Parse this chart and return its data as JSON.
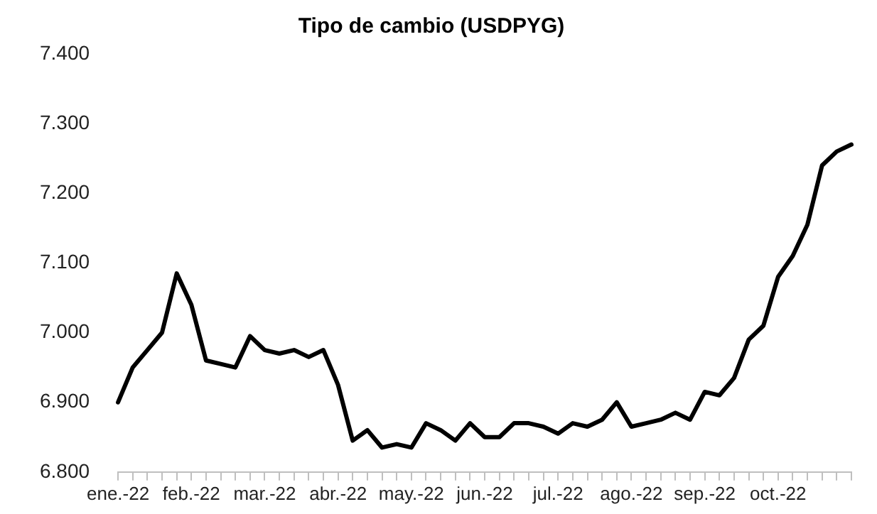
{
  "chart_data": {
    "type": "line",
    "title": "Tipo de cambio (USDPYG)",
    "categories": [
      "ene.-22",
      null,
      null,
      null,
      null,
      "feb.-22",
      null,
      null,
      null,
      null,
      "mar.-22",
      null,
      null,
      null,
      null,
      "abr.-22",
      null,
      null,
      null,
      null,
      "may.-22",
      null,
      null,
      null,
      null,
      "jun.-22",
      null,
      null,
      null,
      null,
      "jul.-22",
      null,
      null,
      null,
      null,
      "ago.-22",
      null,
      null,
      null,
      null,
      "sep.-22",
      null,
      null,
      null,
      null,
      "oct.-22",
      null,
      null,
      null,
      null,
      null
    ],
    "series": [
      {
        "color": "#000000",
        "values": [
          6.9,
          6.95,
          6.975,
          7.0,
          7.085,
          7.04,
          6.96,
          6.955,
          6.95,
          6.995,
          6.975,
          6.97,
          6.975,
          6.965,
          6.975,
          6.925,
          6.845,
          6.86,
          6.835,
          6.84,
          6.835,
          6.87,
          6.86,
          6.845,
          6.87,
          6.85,
          6.85,
          6.87,
          6.87,
          6.865,
          6.855,
          6.87,
          6.865,
          6.875,
          6.9,
          6.865,
          6.87,
          6.875,
          6.885,
          6.875,
          6.915,
          6.91,
          6.935,
          6.99,
          7.01,
          7.08,
          7.11,
          7.155,
          7.24,
          7.26,
          7.27
        ]
      }
    ],
    "ylim": [
      6.8,
      7.4
    ],
    "yticks": [
      {
        "value": 6.8,
        "label": "6.800"
      },
      {
        "value": 6.9,
        "label": "6.900"
      },
      {
        "value": 7.0,
        "label": "7.000"
      },
      {
        "value": 7.1,
        "label": "7.100"
      },
      {
        "value": 7.2,
        "label": "7.200"
      },
      {
        "value": 7.3,
        "label": "7.300"
      },
      {
        "value": 7.4,
        "label": "7.400"
      }
    ],
    "grid": false,
    "legend": false,
    "marker": "none",
    "line_style": "solid"
  }
}
